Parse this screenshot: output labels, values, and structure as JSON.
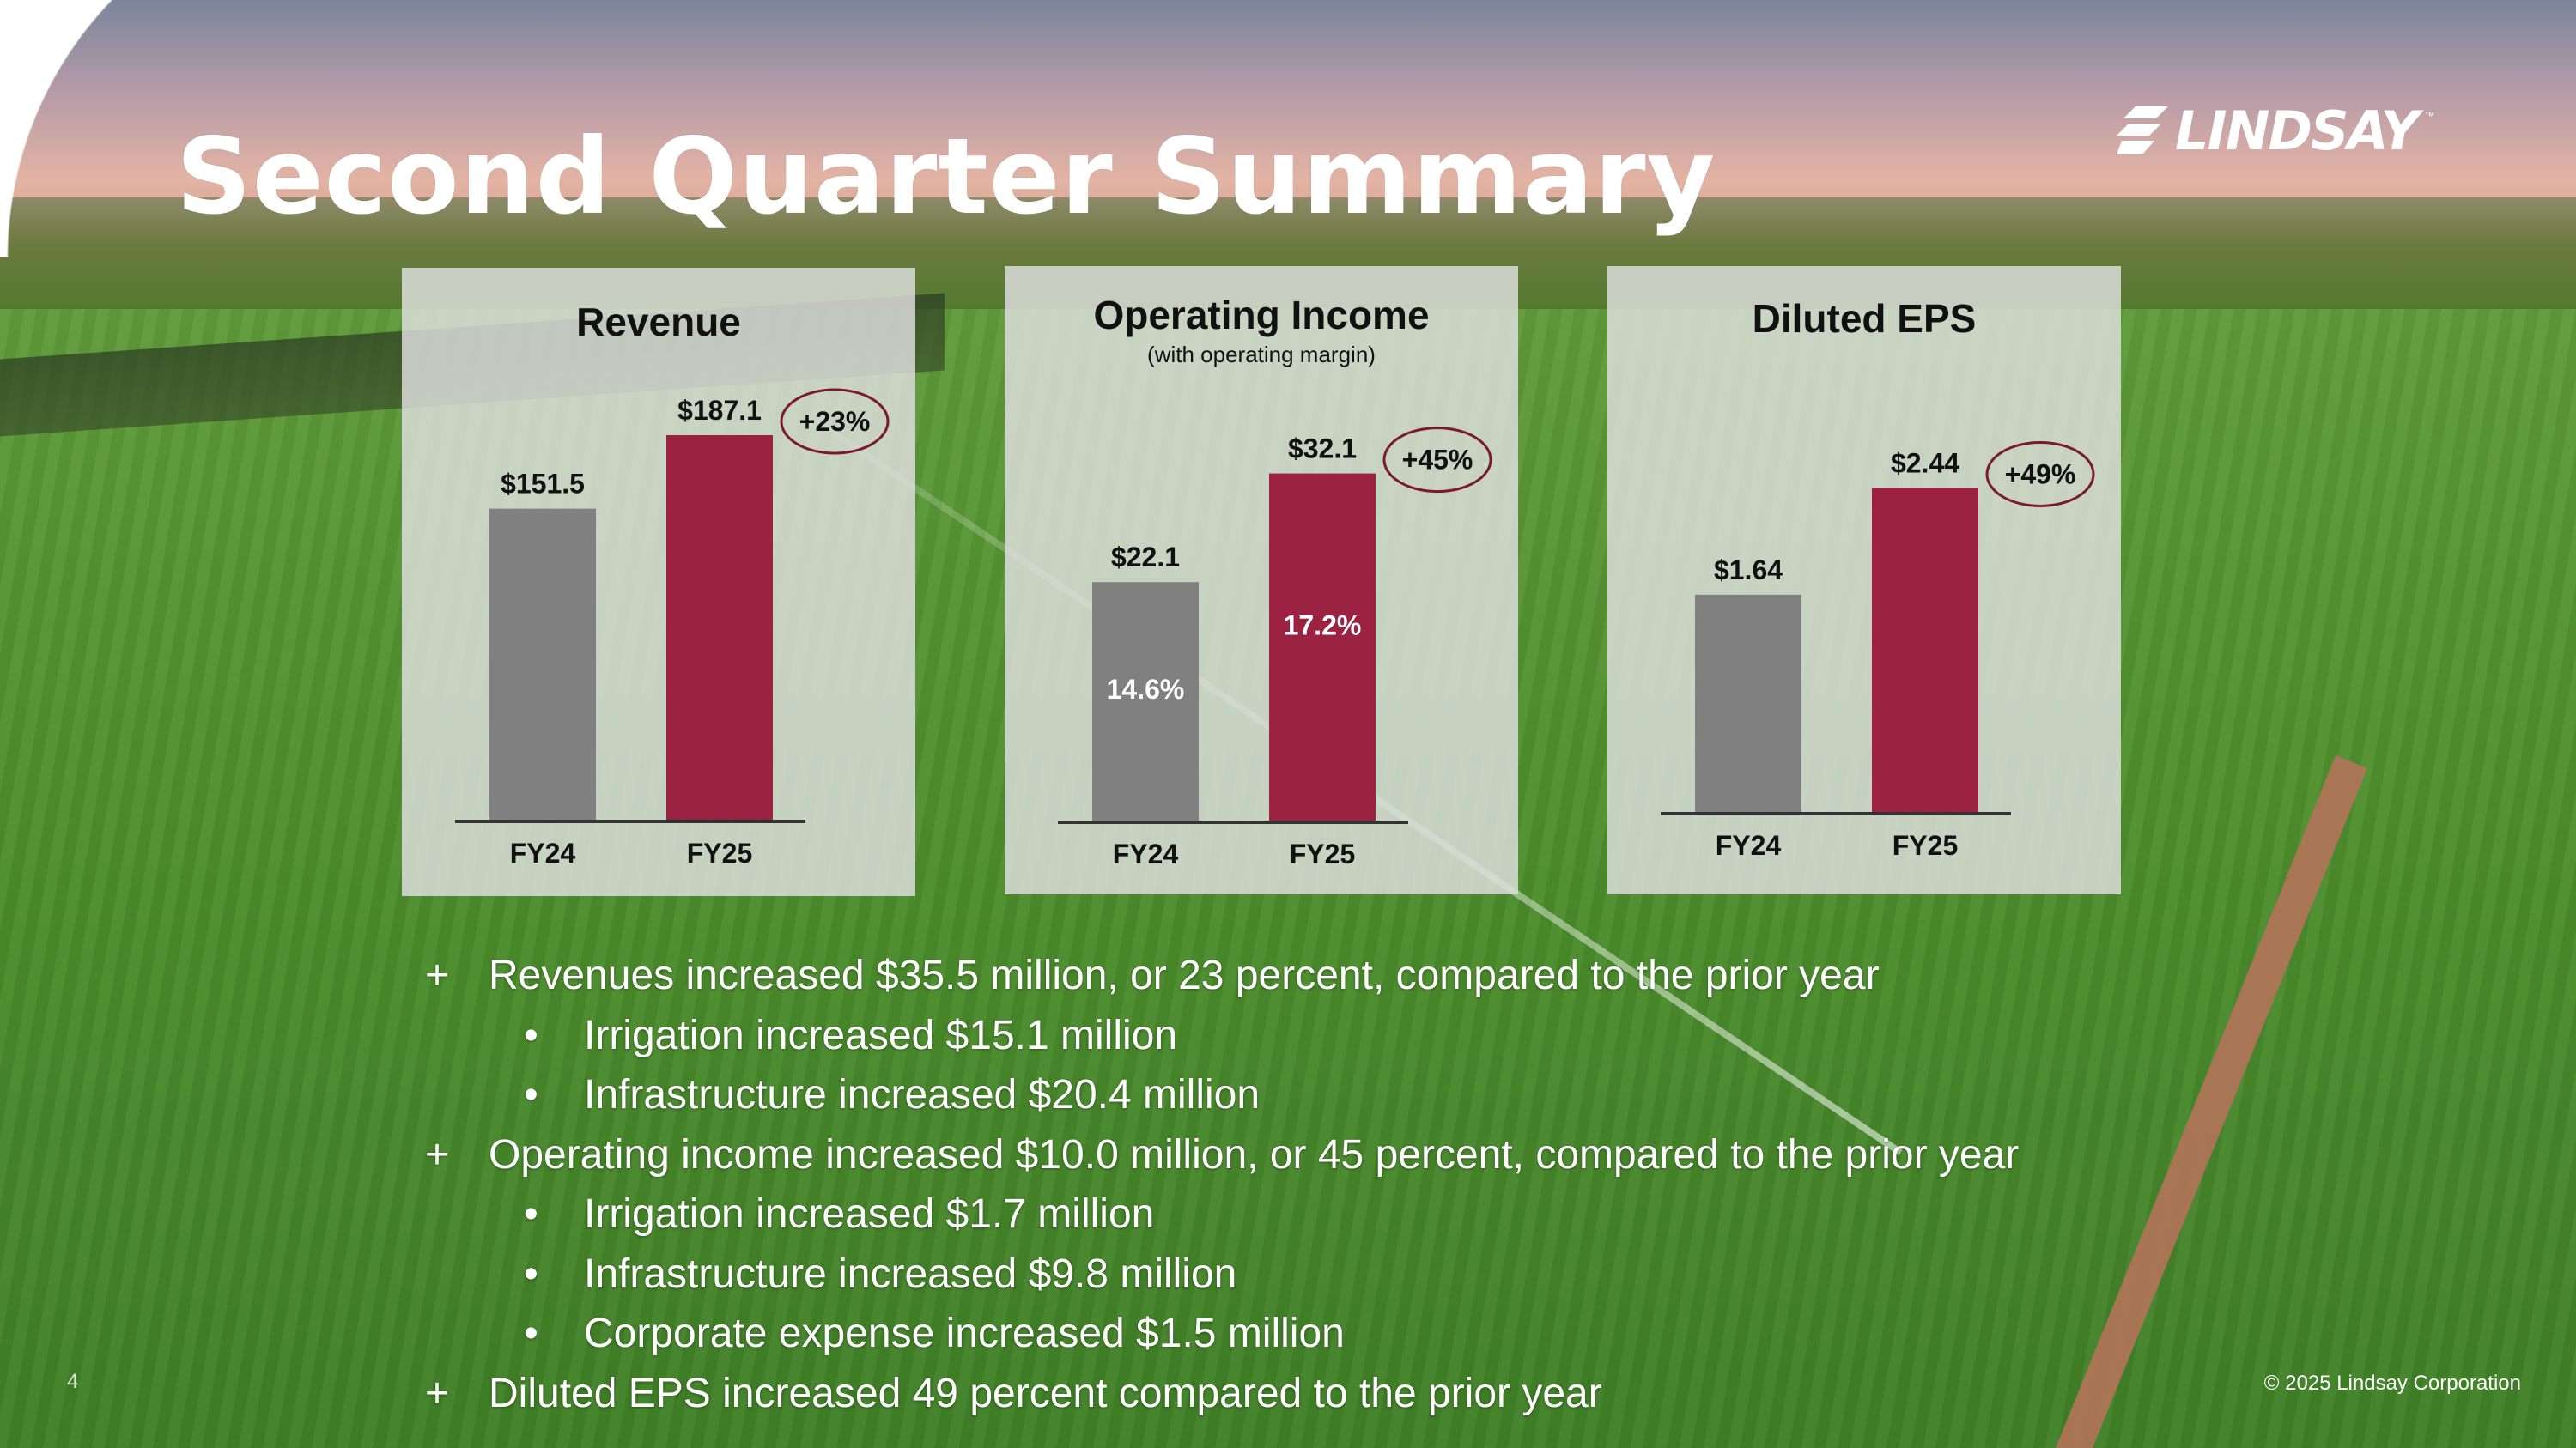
{
  "slide": {
    "title": "Second Quarter Summary",
    "logo_text": "LINDSAY",
    "logo_tm": "™",
    "page_number": "4",
    "copyright": "© 2025 Lindsay Corporation"
  },
  "colors": {
    "fy24_bar": "#808080",
    "fy25_bar": "#9b2240",
    "growth_oval": "#7a1a30"
  },
  "chart_data": [
    {
      "type": "bar",
      "title": "Revenue",
      "subtitle": "",
      "categories": [
        "FY24",
        "FY25"
      ],
      "values": [
        151.5,
        187.1
      ],
      "value_labels": [
        "$151.5",
        "$187.1"
      ],
      "inner_labels": [
        "",
        ""
      ],
      "growth_label": "+23%",
      "ylim": [
        0,
        187.1
      ]
    },
    {
      "type": "bar",
      "title": "Operating Income",
      "subtitle": "(with operating margin)",
      "categories": [
        "FY24",
        "FY25"
      ],
      "values": [
        22.1,
        32.1
      ],
      "value_labels": [
        "$22.1",
        "$32.1"
      ],
      "inner_labels": [
        "14.6%",
        "17.2%"
      ],
      "growth_label": "+45%",
      "ylim": [
        0,
        46.6
      ]
    },
    {
      "type": "bar",
      "title": "Diluted EPS",
      "subtitle": "",
      "categories": [
        "FY24",
        "FY25"
      ],
      "values": [
        1.64,
        2.44
      ],
      "value_labels": [
        "$1.64",
        "$2.44"
      ],
      "inner_labels": [
        "",
        ""
      ],
      "growth_label": "+49%",
      "ylim": [
        0,
        3.6
      ]
    }
  ],
  "bullets": {
    "marker_plus": "+",
    "marker_dot": "•",
    "items": [
      "Revenues increased $35.5 million, or 23 percent, compared to the prior year",
      "Irrigation increased $15.1 million",
      "Infrastructure increased $20.4 million",
      "Operating income increased $10.0 million, or 45 percent, compared to the prior year",
      "Irrigation increased $1.7 million",
      "Infrastructure increased $9.8 million",
      "Corporate expense increased $1.5 million",
      "Diluted EPS increased 49 percent compared to the prior year"
    ]
  }
}
